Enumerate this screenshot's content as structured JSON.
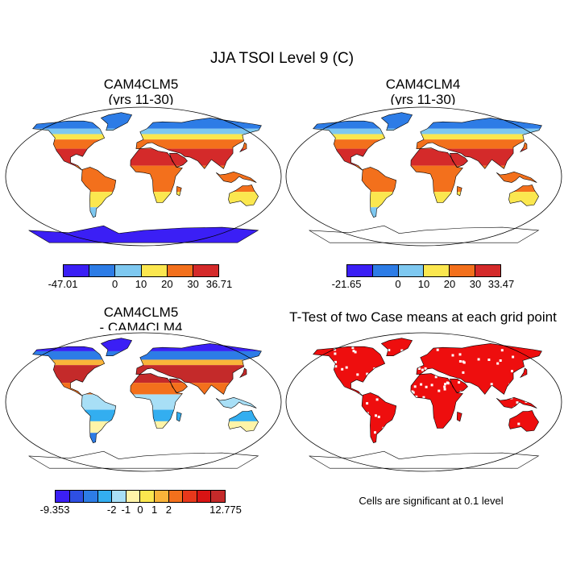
{
  "figure_title": "JJA TSOI Level 9 (C)",
  "panels": [
    {
      "title_line1": "CAM4CLM5",
      "title_line2": "(yrs 11-30)"
    },
    {
      "title_line1": "CAM4CLM4",
      "title_line2": "(yrs 11-30)"
    },
    {
      "title_line1": "CAM4CLM5",
      "title_line2": "- CAM4CLM4"
    },
    {
      "title_line1": "T-Test of two Case means at each grid point",
      "title_line2": ""
    }
  ],
  "colorbars": [
    {
      "colors": [
        "#3b1ff5",
        "#2d7ce6",
        "#7ec8f0",
        "#fbe74f",
        "#f3701c",
        "#d42a2a"
      ],
      "labels": [
        "-47.01",
        "0",
        "10",
        "20",
        "30",
        "36.71"
      ]
    },
    {
      "colors": [
        "#3b1ff5",
        "#2d7ce6",
        "#7ec8f0",
        "#fbe74f",
        "#f3701c",
        "#d42a2a"
      ],
      "labels": [
        "-21.65",
        "0",
        "10",
        "20",
        "30",
        "33.47"
      ]
    },
    {
      "colors": [
        "#3b1ff5",
        "#2e4fe3",
        "#2d7ce6",
        "#33aef0",
        "#a8dff6",
        "#fff4a8",
        "#fbe74f",
        "#f9b43a",
        "#f3701c",
        "#e8381b",
        "#d81414",
        "#c42a2a"
      ],
      "labels": [
        "-9.353",
        "-2",
        "-1",
        "0",
        "1",
        "2",
        "12.775"
      ]
    }
  ],
  "significance_note": "Cells are significant at 0.1 level",
  "map_colors": {
    "ocean": "#ffffff",
    "ttest": "#ee0e0e"
  }
}
